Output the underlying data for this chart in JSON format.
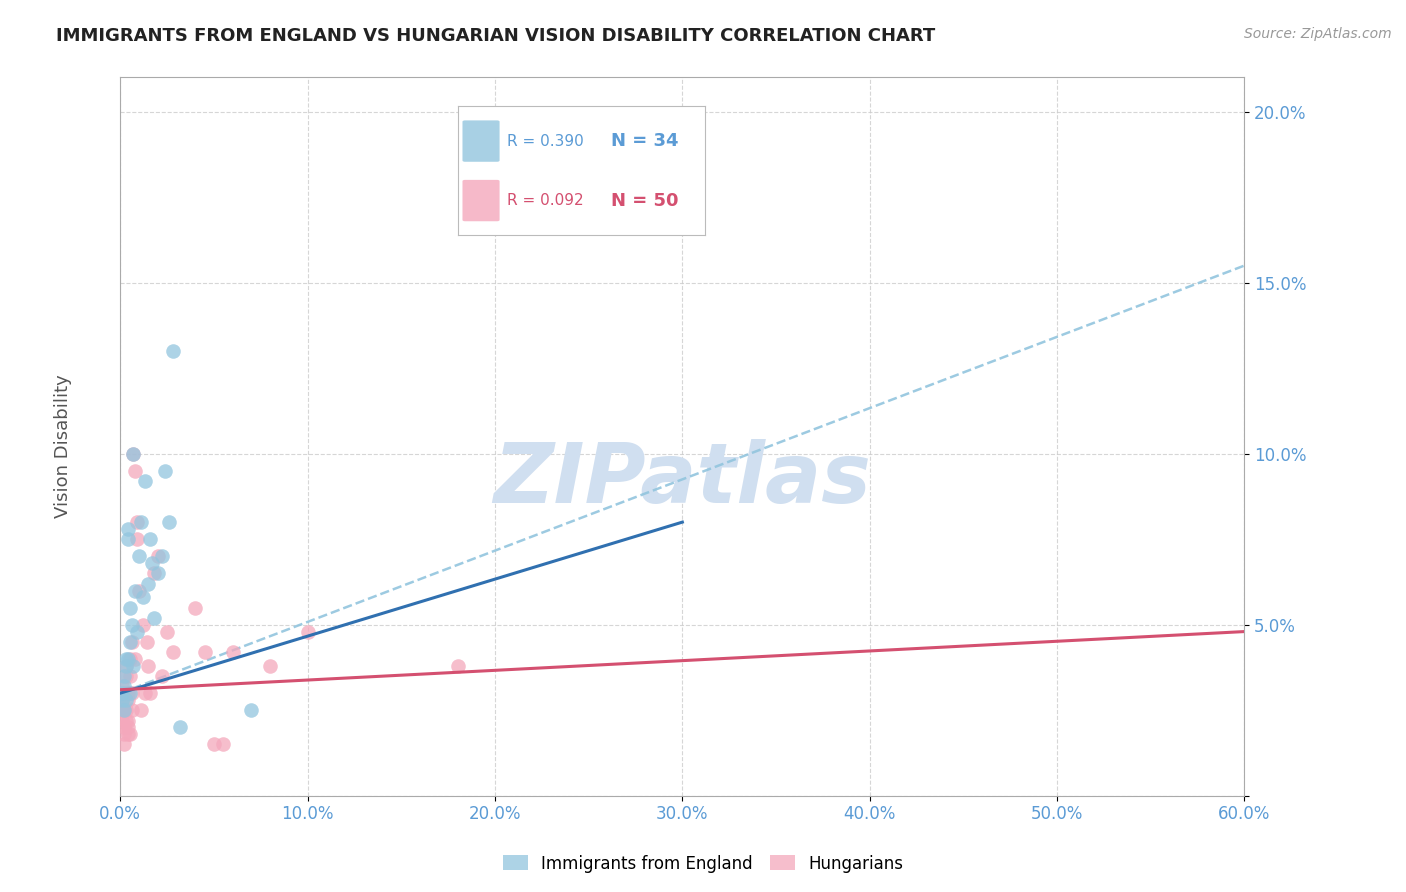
{
  "title": "IMMIGRANTS FROM ENGLAND VS HUNGARIAN VISION DISABILITY CORRELATION CHART",
  "source": "Source: ZipAtlas.com",
  "xlabel_blue": "Immigrants from England",
  "xlabel_pink": "Hungarians",
  "ylabel": "Vision Disability",
  "watermark": "ZIPatlas",
  "xlim": [
    0.0,
    0.6
  ],
  "ylim": [
    0.0,
    0.21
  ],
  "xticks": [
    0.0,
    0.1,
    0.2,
    0.3,
    0.4,
    0.5,
    0.6
  ],
  "xtick_labels": [
    "0.0%",
    "10.0%",
    "20.0%",
    "30.0%",
    "40.0%",
    "50.0%",
    "60.0%"
  ],
  "yticks": [
    0.0,
    0.05,
    0.1,
    0.15,
    0.2
  ],
  "ytick_labels": [
    "",
    "5.0%",
    "10.0%",
    "15.0%",
    "20.0%"
  ],
  "legend_blue_r": "R = 0.390",
  "legend_blue_n": "N = 34",
  "legend_pink_r": "R = 0.092",
  "legend_pink_n": "N = 50",
  "blue_color": "#92c5de",
  "pink_color": "#f4a8bc",
  "blue_line_color": "#3070b0",
  "pink_line_color": "#d45070",
  "dash_color": "#92c5de",
  "blue_scatter": [
    [
      0.001,
      0.03
    ],
    [
      0.001,
      0.028
    ],
    [
      0.002,
      0.025
    ],
    [
      0.002,
      0.032
    ],
    [
      0.002,
      0.035
    ],
    [
      0.003,
      0.04
    ],
    [
      0.003,
      0.028
    ],
    [
      0.003,
      0.038
    ],
    [
      0.004,
      0.075
    ],
    [
      0.004,
      0.078
    ],
    [
      0.004,
      0.04
    ],
    [
      0.005,
      0.055
    ],
    [
      0.005,
      0.03
    ],
    [
      0.005,
      0.045
    ],
    [
      0.006,
      0.05
    ],
    [
      0.007,
      0.1
    ],
    [
      0.007,
      0.038
    ],
    [
      0.008,
      0.06
    ],
    [
      0.009,
      0.048
    ],
    [
      0.01,
      0.07
    ],
    [
      0.011,
      0.08
    ],
    [
      0.012,
      0.058
    ],
    [
      0.013,
      0.092
    ],
    [
      0.015,
      0.062
    ],
    [
      0.016,
      0.075
    ],
    [
      0.017,
      0.068
    ],
    [
      0.018,
      0.052
    ],
    [
      0.02,
      0.065
    ],
    [
      0.022,
      0.07
    ],
    [
      0.024,
      0.095
    ],
    [
      0.026,
      0.08
    ],
    [
      0.028,
      0.13
    ],
    [
      0.032,
      0.02
    ],
    [
      0.07,
      0.025
    ]
  ],
  "pink_scatter": [
    [
      0.001,
      0.028
    ],
    [
      0.001,
      0.025
    ],
    [
      0.001,
      0.022
    ],
    [
      0.001,
      0.032
    ],
    [
      0.002,
      0.03
    ],
    [
      0.002,
      0.018
    ],
    [
      0.002,
      0.025
    ],
    [
      0.002,
      0.02
    ],
    [
      0.002,
      0.015
    ],
    [
      0.003,
      0.035
    ],
    [
      0.003,
      0.022
    ],
    [
      0.003,
      0.038
    ],
    [
      0.003,
      0.03
    ],
    [
      0.003,
      0.025
    ],
    [
      0.004,
      0.02
    ],
    [
      0.004,
      0.028
    ],
    [
      0.004,
      0.03
    ],
    [
      0.004,
      0.018
    ],
    [
      0.004,
      0.022
    ],
    [
      0.005,
      0.035
    ],
    [
      0.005,
      0.018
    ],
    [
      0.005,
      0.04
    ],
    [
      0.006,
      0.025
    ],
    [
      0.006,
      0.045
    ],
    [
      0.006,
      0.03
    ],
    [
      0.007,
      0.1
    ],
    [
      0.008,
      0.095
    ],
    [
      0.008,
      0.04
    ],
    [
      0.009,
      0.08
    ],
    [
      0.009,
      0.075
    ],
    [
      0.01,
      0.06
    ],
    [
      0.011,
      0.025
    ],
    [
      0.012,
      0.05
    ],
    [
      0.013,
      0.03
    ],
    [
      0.014,
      0.045
    ],
    [
      0.015,
      0.038
    ],
    [
      0.016,
      0.03
    ],
    [
      0.018,
      0.065
    ],
    [
      0.02,
      0.07
    ],
    [
      0.022,
      0.035
    ],
    [
      0.025,
      0.048
    ],
    [
      0.028,
      0.042
    ],
    [
      0.04,
      0.055
    ],
    [
      0.045,
      0.042
    ],
    [
      0.05,
      0.015
    ],
    [
      0.055,
      0.015
    ],
    [
      0.06,
      0.042
    ],
    [
      0.08,
      0.038
    ],
    [
      0.1,
      0.048
    ],
    [
      0.18,
      0.038
    ]
  ],
  "blue_trend_x": [
    0.0,
    0.3
  ],
  "blue_trend_y_start": 0.03,
  "blue_trend_y_end": 0.08,
  "pink_trend_x": [
    0.0,
    0.6
  ],
  "pink_trend_y_start": 0.031,
  "pink_trend_y_end": 0.048,
  "dash_trend_x": [
    0.0,
    0.6
  ],
  "dash_trend_y_start": 0.03,
  "dash_trend_y_end": 0.155,
  "background_color": "#ffffff",
  "grid_color": "#cccccc",
  "axis_color": "#aaaaaa",
  "title_color": "#222222",
  "tick_color": "#5b9bd5",
  "watermark_color": "#d0dff0"
}
